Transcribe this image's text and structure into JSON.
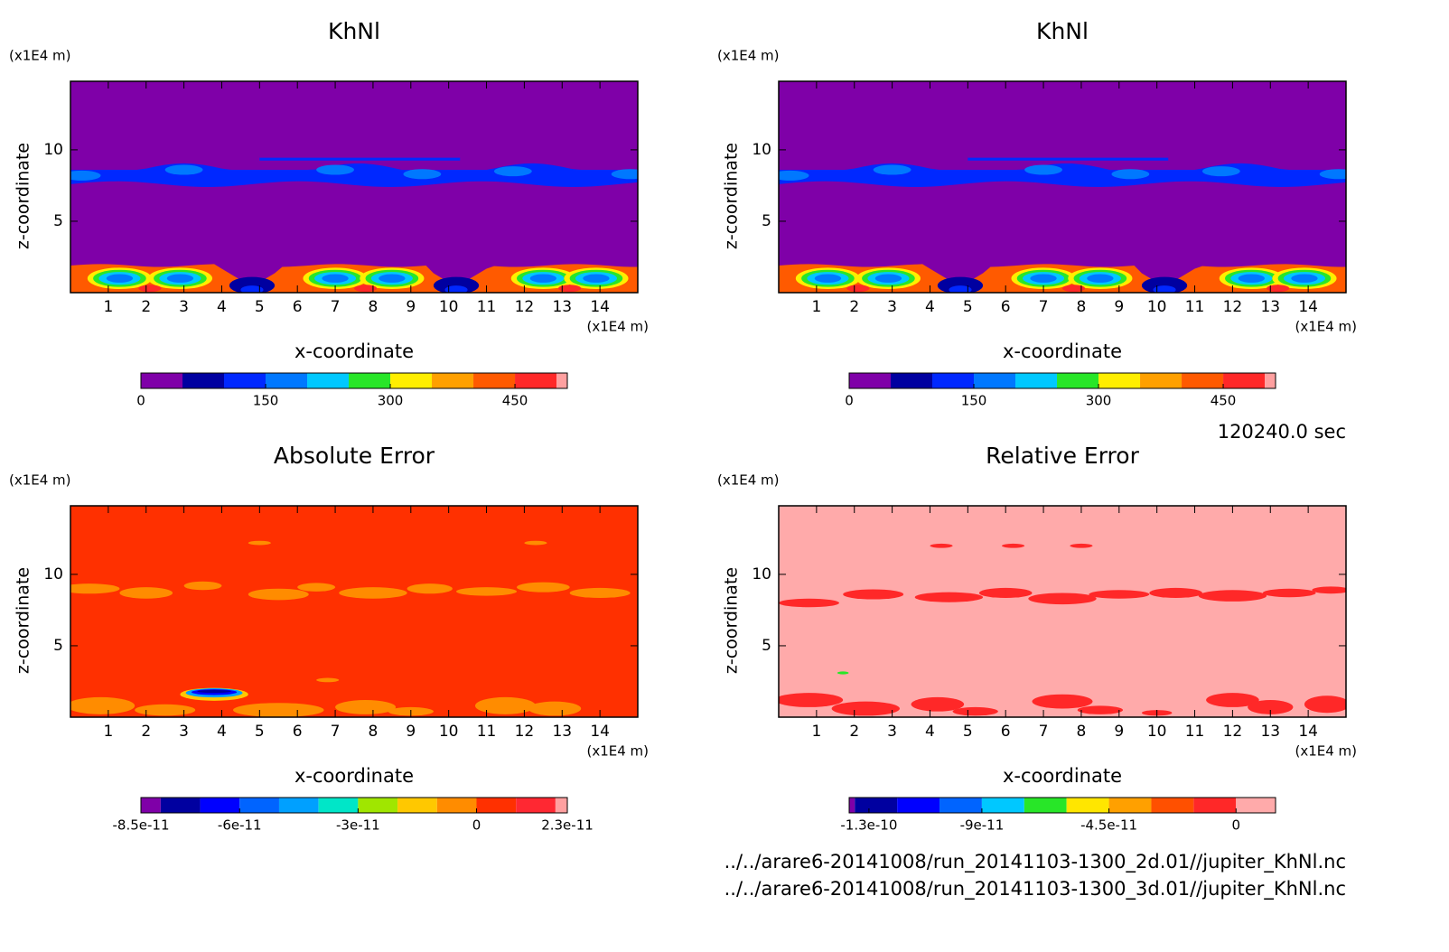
{
  "chart_data": [
    {
      "type": "contour",
      "title": "KhNl",
      "xlabel": "x-coordinate",
      "ylabel": "z-coordinate",
      "xunit": "(x1E4 m)",
      "yunit": "(x1E4 m)",
      "xlim": [
        0,
        15
      ],
      "ylim": [
        0,
        14.8
      ],
      "xticks": [
        1,
        2,
        3,
        4,
        5,
        6,
        7,
        8,
        9,
        10,
        11,
        12,
        13,
        14
      ],
      "yticks": [
        5,
        10
      ],
      "colorbar": {
        "clim": [
          0,
          513
        ],
        "levels": [
          50,
          100,
          150,
          200,
          250,
          300,
          350,
          400,
          450,
          500
        ],
        "colors": [
          "#7f00a8",
          "#0000a0",
          "#0028ff",
          "#0078ff",
          "#00c8ff",
          "#28e628",
          "#ffee00",
          "#ffa000",
          "#ff5a00",
          "#ff2828",
          "#ffa0a0"
        ],
        "ticks": [
          0,
          150,
          300,
          450
        ]
      }
    },
    {
      "type": "contour",
      "title": "KhNl",
      "xlabel": "x-coordinate",
      "ylabel": "z-coordinate",
      "xunit": "(x1E4 m)",
      "yunit": "(x1E4 m)",
      "xlim": [
        0,
        15
      ],
      "ylim": [
        0,
        14.8
      ],
      "xticks": [
        1,
        2,
        3,
        4,
        5,
        6,
        7,
        8,
        9,
        10,
        11,
        12,
        13,
        14
      ],
      "yticks": [
        5,
        10
      ],
      "colorbar": {
        "clim": [
          0,
          513
        ],
        "levels": [
          50,
          100,
          150,
          200,
          250,
          300,
          350,
          400,
          450,
          500
        ],
        "colors": [
          "#7f00a8",
          "#0000a0",
          "#0028ff",
          "#0078ff",
          "#00c8ff",
          "#28e628",
          "#ffee00",
          "#ffa000",
          "#ff5a00",
          "#ff2828",
          "#ffa0a0"
        ],
        "ticks": [
          0,
          150,
          300,
          450
        ]
      }
    },
    {
      "type": "contour",
      "title": "Absolute Error",
      "xlabel": "x-coordinate",
      "ylabel": "z-coordinate",
      "xunit": "(x1E4 m)",
      "yunit": "(x1E4 m)",
      "xlim": [
        0,
        15
      ],
      "ylim": [
        0,
        14.8
      ],
      "xticks": [
        1,
        2,
        3,
        4,
        5,
        6,
        7,
        8,
        9,
        10,
        11,
        12,
        13,
        14
      ],
      "yticks": [
        5,
        10
      ],
      "colorbar": {
        "clim": [
          -8.5e-11,
          2.3e-11
        ],
        "levels": [
          -8e-11,
          -7e-11,
          -6e-11,
          -5e-11,
          -4e-11,
          -3e-11,
          -2e-11,
          -1e-11,
          0,
          1e-11,
          2e-11
        ],
        "colors": [
          "#7f00a8",
          "#0000a0",
          "#0000ff",
          "#0064ff",
          "#00a0ff",
          "#00e6c8",
          "#a0e600",
          "#ffc800",
          "#ff8c00",
          "#ff3000",
          "#ff2832",
          "#ffa0a0"
        ],
        "ticks": [
          {
            "value": -8.5e-11,
            "label": "-8.5e-11"
          },
          {
            "value": -6e-11,
            "label": "-6e-11"
          },
          {
            "value": -3e-11,
            "label": "-3e-11"
          },
          0,
          {
            "value": 2.3e-11,
            "label": "2.3e-11"
          }
        ]
      }
    },
    {
      "type": "contour",
      "title": "Relative Error",
      "xlabel": "x-coordinate",
      "ylabel": "z-coordinate",
      "xunit": "(x1E4 m)",
      "yunit": "(x1E4 m)",
      "xlim": [
        0,
        15
      ],
      "ylim": [
        0,
        14.8
      ],
      "xticks": [
        1,
        2,
        3,
        4,
        5,
        6,
        7,
        8,
        9,
        10,
        11,
        12,
        13,
        14
      ],
      "yticks": [
        5,
        10
      ],
      "colorbar": {
        "clim": [
          -1.37e-10,
          1.4e-11
        ],
        "levels": [
          -1.35e-10,
          -1.2e-10,
          -1.05e-10,
          -9e-11,
          -7.5e-11,
          -6e-11,
          -4.5e-11,
          -3e-11,
          -1.5e-11,
          0
        ],
        "colors": [
          "#7f00a8",
          "#0000a0",
          "#0000ff",
          "#0064ff",
          "#00c8ff",
          "#28e628",
          "#ffe600",
          "#ffa000",
          "#ff5000",
          "#ff2828",
          "#ffaaaa"
        ],
        "ticks": [
          {
            "value": -1.3e-10,
            "label": "-1.3e-10"
          },
          {
            "value": -9e-11,
            "label": "-9e-11"
          },
          {
            "value": -4.5e-11,
            "label": "-4.5e-11"
          },
          0
        ]
      }
    }
  ],
  "time": "120240.0 sec",
  "files": [
    "../../arare6-20141008/run_20141103-1300_2d.01//jupiter_KhNl.nc",
    "../../arare6-20141008/run_20141103-1300_3d.01//jupiter_KhNl.nc"
  ]
}
